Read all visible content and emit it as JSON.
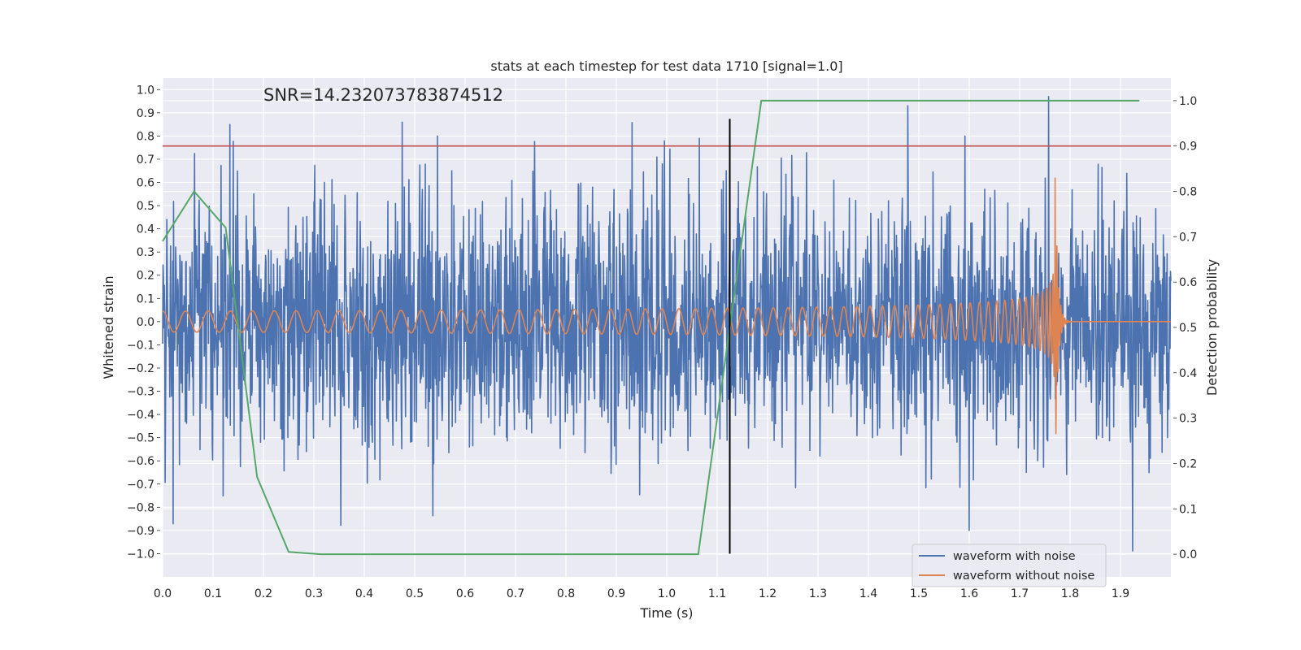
{
  "chart_data": {
    "type": "line",
    "title": "stats at each timestep for test data 1710 [signal=1.0]",
    "xlabel": "Time (s)",
    "ylabel_left": "Whitened strain",
    "ylabel_right": "Detection probability",
    "xlim": [
      0.0,
      2.0
    ],
    "ylim_left": [
      -1.1,
      1.05
    ],
    "ylim_right": [
      -0.05,
      1.05
    ],
    "x_ticks": [
      "0.0",
      "0.1",
      "0.2",
      "0.3",
      "0.4",
      "0.5",
      "0.6",
      "0.7",
      "0.8",
      "0.9",
      "1.0",
      "1.1",
      "1.2",
      "1.3",
      "1.4",
      "1.5",
      "1.6",
      "1.7",
      "1.8",
      "1.9"
    ],
    "y_ticks_left": [
      "1.0",
      "0.9",
      "0.8",
      "0.7",
      "0.6",
      "0.5",
      "0.4",
      "0.3",
      "0.2",
      "0.1",
      "0.0",
      "-0.1",
      "-0.2",
      "-0.3",
      "-0.4",
      "-0.5",
      "-0.6",
      "-0.7",
      "-0.8",
      "-0.9",
      "-1.0"
    ],
    "y_ticks_right": [
      "1.0",
      "0.9",
      "0.8",
      "0.7",
      "0.6",
      "0.5",
      "0.4",
      "0.3",
      "0.2",
      "0.1",
      "0.0"
    ],
    "annotation": "SNR=14.232073783874512",
    "threshold": 0.9,
    "vline_x": 1.125,
    "vline_range": [
      -1.0,
      0.96
    ],
    "noise_seed": 1710,
    "series": [
      {
        "name": "waveform with noise",
        "color": "#4c72b0",
        "axis": "left",
        "generated": "noise",
        "x_range": [
          0.0,
          2.0
        ],
        "amplitude": 0.28,
        "peaks": [
          [
            0.133,
            0.85
          ],
          [
            0.475,
            0.86
          ],
          [
            0.545,
            0.8
          ],
          [
            1.065,
            0.79
          ],
          [
            1.757,
            0.97
          ],
          [
            1.6,
            -0.9
          ]
        ]
      },
      {
        "name": "waveform without noise",
        "color": "#dd8452",
        "axis": "left",
        "generated": "chirp",
        "x_range": [
          0.0,
          2.0
        ],
        "merger_time": 1.77,
        "peak_amplitude": 0.72,
        "start_amplitude": 0.045,
        "start_frequency": 22
      },
      {
        "name": "Detection probability",
        "color": "#55a868",
        "axis": "right",
        "x": [
          0.0,
          0.0625,
          0.125,
          0.1875,
          0.25,
          0.3125,
          0.375,
          0.4375,
          0.5,
          0.5625,
          0.625,
          0.6875,
          0.75,
          0.8125,
          0.875,
          0.9375,
          1.0,
          1.0625,
          1.125,
          1.1875,
          1.25,
          1.3125,
          1.375,
          1.4375,
          1.5,
          1.5625,
          1.625,
          1.6875,
          1.75,
          1.8125,
          1.875,
          1.9375
        ],
        "values": [
          0.69,
          0.8,
          0.72,
          0.17,
          0.005,
          0.0,
          0.0,
          0.0,
          0.0,
          0.0,
          0.0,
          0.0,
          0.0,
          0.0,
          0.0,
          0.0,
          0.0,
          0.0,
          0.5,
          1.0,
          1.0,
          1.0,
          1.0,
          1.0,
          1.0,
          1.0,
          1.0,
          1.0,
          1.0,
          1.0,
          1.0,
          1.0
        ]
      }
    ],
    "threshold_color": "#c44e52",
    "vline_color": "#000000",
    "grid": true,
    "legend_position": "lower right"
  }
}
